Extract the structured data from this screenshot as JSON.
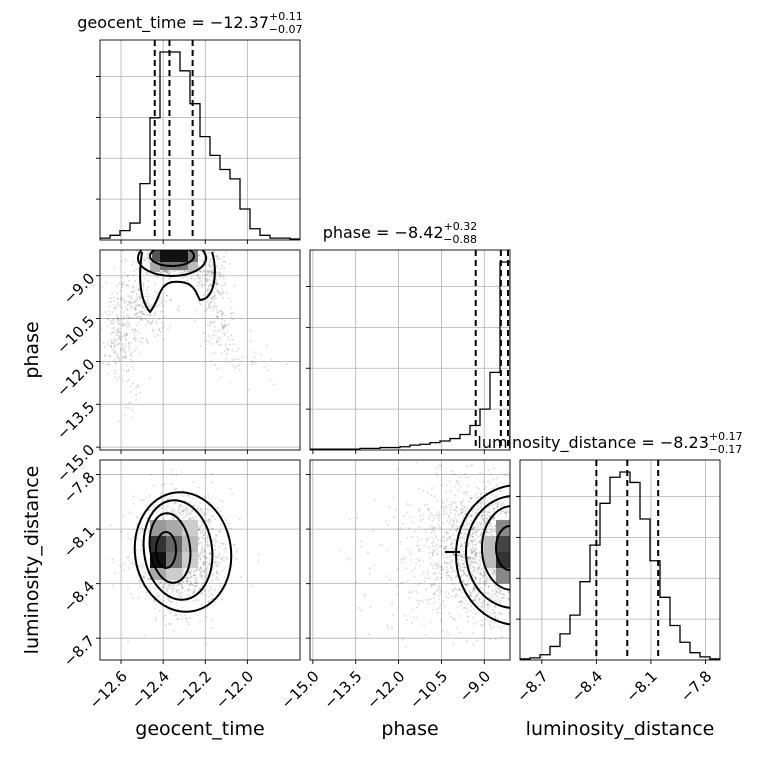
{
  "chart_data": {
    "type": "corner",
    "parameters": [
      {
        "name": "geocent_time",
        "axis_label": "geocent_time",
        "title": {
          "prefix": "geocent_time = ",
          "median": "−12.37",
          "plus": "+0.11",
          "minus": "−0.07"
        },
        "range": [
          -12.7,
          -11.75
        ],
        "ticks": [
          -12.6,
          -12.4,
          -12.2,
          -12.0
        ],
        "tick_labels": [
          "−12.6",
          "−12.4",
          "−12.2",
          "−12.0"
        ],
        "quantiles": [
          -12.44,
          -12.37,
          -12.26
        ],
        "hist": {
          "edges_start": -12.7,
          "bin_width": 0.0475,
          "counts": [
            2,
            5,
            10,
            18,
            60,
            130,
            200,
            200,
            180,
            145,
            110,
            90,
            75,
            65,
            33,
            12,
            5,
            2,
            2,
            1
          ]
        }
      },
      {
        "name": "phase",
        "axis_label": "phase",
        "title": {
          "prefix": "phase = ",
          "median": "−8.42",
          "plus": "+0.32",
          "minus": "−0.88"
        },
        "range": [
          -15.1,
          -8.1
        ],
        "ticks": [
          -15.0,
          -13.5,
          -12.0,
          -10.5,
          -9.0
        ],
        "tick_labels": [
          "−15.0",
          "−13.5",
          "−12.0",
          "−10.5",
          "−9.0"
        ],
        "quantiles": [
          -9.3,
          -8.42,
          -8.1
        ],
        "hist": {
          "edges_start": -15.1,
          "bin_width": 0.35,
          "counts": [
            1,
            1,
            1,
            1,
            1,
            2,
            2,
            3,
            3,
            4,
            6,
            7,
            9,
            11,
            14,
            19,
            30,
            50,
            95,
            230
          ]
        }
      },
      {
        "name": "luminosity_distance",
        "axis_label": "luminosity_distance",
        "title": {
          "prefix": "luminosity_distance = ",
          "median": "−8.23",
          "plus": "+0.17",
          "minus": "−0.17"
        },
        "range": [
          -8.82,
          -7.72
        ],
        "ticks": [
          -8.7,
          -8.4,
          -8.1,
          -7.8
        ],
        "tick_labels": [
          "−8.7",
          "−8.4",
          "−8.1",
          "−7.8"
        ],
        "quantiles": [
          -8.4,
          -8.23,
          -8.06
        ],
        "hist": {
          "edges_start": -8.82,
          "bin_width": 0.055,
          "counts": [
            1,
            2,
            5,
            13,
            25,
            43,
            75,
            110,
            150,
            175,
            180,
            170,
            135,
            95,
            60,
            33,
            17,
            7,
            3,
            1
          ]
        }
      }
    ],
    "grid": true,
    "legend": "none"
  }
}
